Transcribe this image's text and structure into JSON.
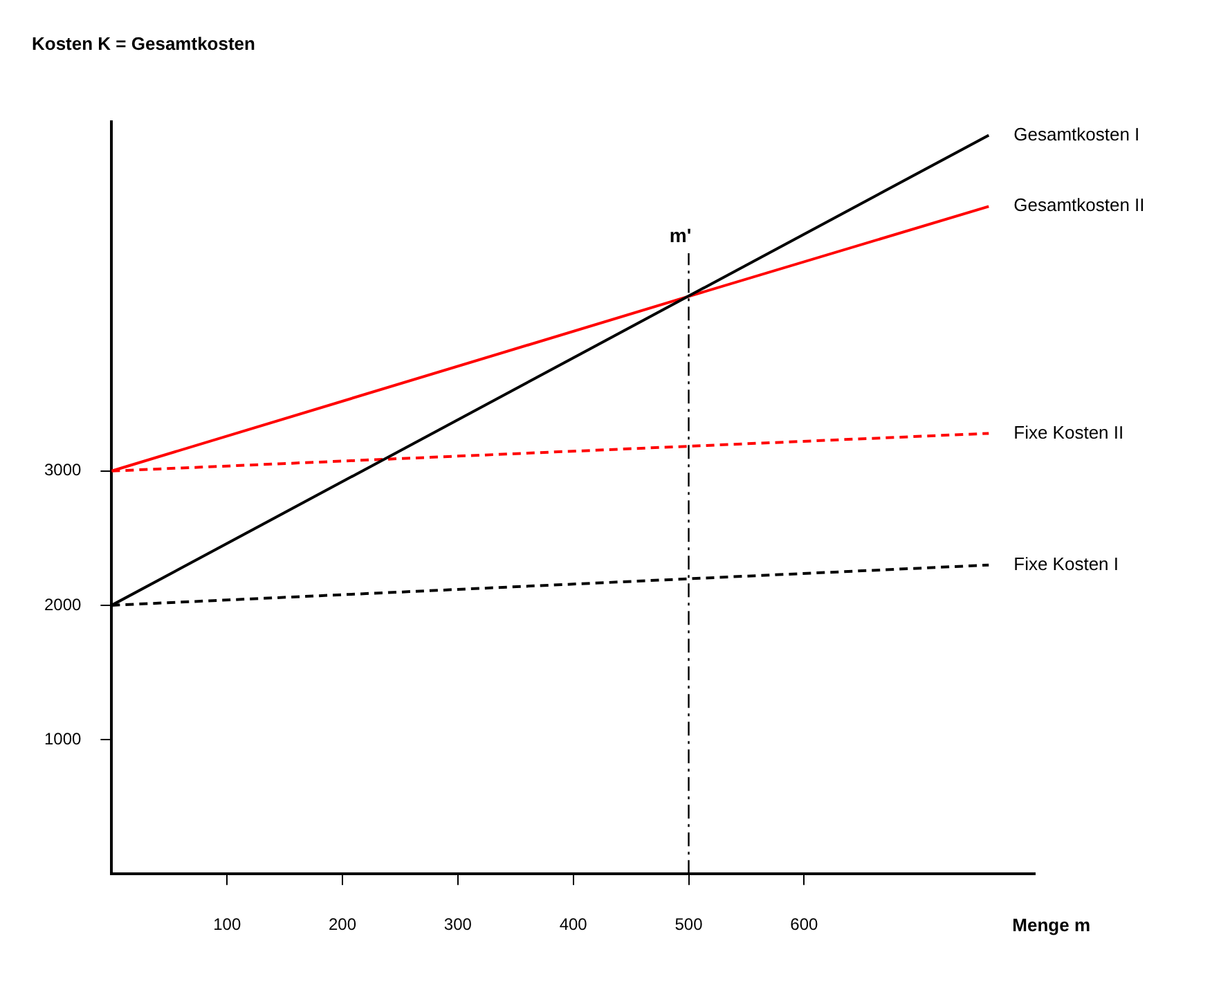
{
  "chart_data": {
    "type": "line",
    "ylabel": "Kosten K = Gesamtkosten",
    "xlabel": "Menge m",
    "series": [
      {
        "name": "Gesamtkosten I",
        "color": "#000000",
        "x": [
          0,
          760
        ],
        "values": [
          2000,
          5500
        ]
      },
      {
        "name": "Gesamtkosten II",
        "color": "#ff0000",
        "x": [
          0,
          500,
          760
        ],
        "values": [
          3000,
          4300,
          4970
        ]
      },
      {
        "name": "Fixe Kosten II",
        "color": "#ff0000",
        "x": [
          0,
          760
        ],
        "values": [
          3000,
          3280
        ],
        "line_style": "dashed"
      },
      {
        "name": "Fixe Kosten I",
        "color": "#000000",
        "x": [
          0,
          760
        ],
        "values": [
          2000,
          2300
        ],
        "line_style": "dashed"
      }
    ],
    "xlim": [
      0,
      800
    ],
    "xticks": [
      100,
      200,
      300,
      400,
      500,
      600
    ],
    "ylim": [
      0,
      5600
    ],
    "yticks": [
      1000,
      2000,
      3000
    ],
    "ref_lines": [
      {
        "axis": "x",
        "value": 500,
        "label": "m'",
        "line_style": "dashdot"
      }
    ],
    "grid": false,
    "legend": false,
    "marker": "none",
    "line_style": "solid"
  }
}
